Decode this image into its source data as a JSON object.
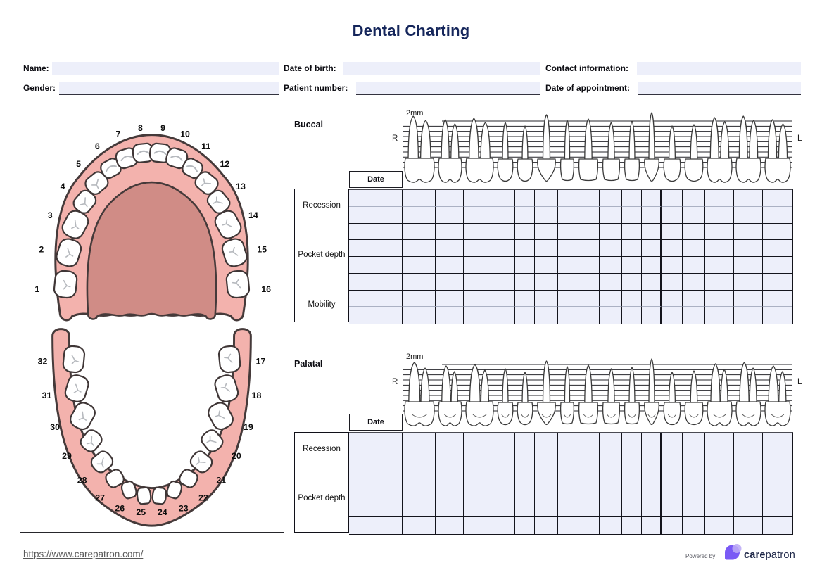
{
  "title": "Dental Charting",
  "header": {
    "fields": [
      {
        "key": "name",
        "label": "Name:",
        "value": ""
      },
      {
        "key": "date_of_birth",
        "label": "Date of birth:",
        "value": ""
      },
      {
        "key": "contact_information",
        "label": "Contact information:",
        "value": ""
      },
      {
        "key": "gender",
        "label": "Gender:",
        "value": ""
      },
      {
        "key": "patient_number",
        "label": "Patient number:",
        "value": ""
      },
      {
        "key": "date_of_appointment",
        "label": "Date of appointment:",
        "value": ""
      }
    ]
  },
  "diagram": {
    "upper_teeth_numbers": [
      "1",
      "2",
      "3",
      "4",
      "5",
      "6",
      "7",
      "8",
      "9",
      "10",
      "11",
      "12",
      "13",
      "14",
      "15",
      "16"
    ],
    "lower_teeth_numbers": [
      "17",
      "18",
      "19",
      "20",
      "21",
      "22",
      "23",
      "24",
      "25",
      "26",
      "27",
      "28",
      "29",
      "30",
      "31",
      "32"
    ],
    "tooth_types": [
      "molar",
      "molar",
      "molar",
      "premolar",
      "premolar",
      "canine",
      "incisor",
      "incisor",
      "incisor",
      "incisor",
      "canine",
      "premolar",
      "premolar",
      "molar",
      "molar",
      "molar"
    ]
  },
  "charts": [
    {
      "id": "buccal",
      "label": "Buccal",
      "scale_label": "2mm",
      "right_label": "R",
      "left_label": "L",
      "date_label": "Date",
      "rows": [
        {
          "label": "Recession",
          "sub_rows": 2,
          "divider": "light"
        },
        {
          "label": "Pocket depth",
          "sub_rows": 4,
          "divider": "dark"
        },
        {
          "label": "Mobility",
          "sub_rows": 2,
          "divider": "light"
        }
      ]
    },
    {
      "id": "palatal",
      "label": "Palatal",
      "scale_label": "2mm",
      "right_label": "R",
      "left_label": "L",
      "date_label": "Date",
      "rows": [
        {
          "label": "Recession",
          "sub_rows": 2,
          "divider": "light"
        },
        {
          "label": "Pocket depth",
          "sub_rows": 4,
          "divider": "dark"
        }
      ]
    }
  ],
  "grid": {
    "tooth_column_widths": [
      48,
      39,
      45,
      28,
      28,
      33,
      26,
      34,
      31,
      28,
      28,
      30,
      32,
      41,
      41,
      42
    ],
    "thick_after_columns": [
      1,
      8,
      11
    ],
    "date_column_width": 76,
    "label_column_width": 78,
    "row_height": 23.75
  },
  "footer": {
    "link": "https://www.carepatron.com/",
    "powered_by": "Powered by",
    "brand_bold": "care",
    "brand_regular": "patron"
  },
  "colors": {
    "title_navy": "#15265b",
    "field_bg": "#edeffa",
    "cell_bg": "#edeffa",
    "grid_line_dark": "#14141c",
    "grid_line_light": "#abb1c3",
    "gum_pink": "#f3b2ad",
    "palate_pink": "#d08c86",
    "outline": "#3f3636",
    "tooth_detail_gray": "#b6b9be",
    "logo_purple": "#7a5af5",
    "logo_light_purple": "#bcaaf6"
  }
}
